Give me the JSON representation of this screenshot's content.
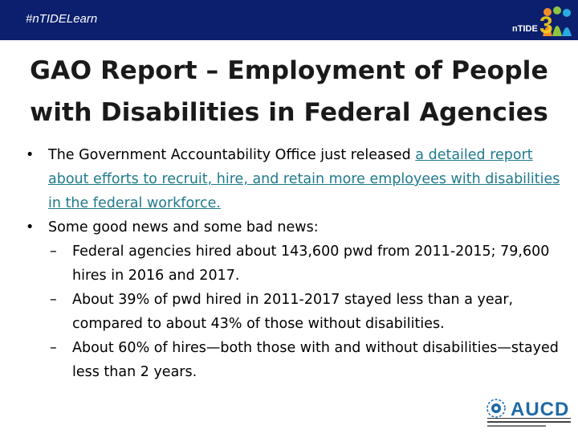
{
  "header": {
    "hashtag": "#nTIDELearn",
    "logo_text": "nTIDE"
  },
  "title": {
    "line1": "GAO Report – Employment of People",
    "line2": "with Disabilities in Federal Agencies"
  },
  "bullets": {
    "first": {
      "text": "The Government Accountability Office just released ",
      "link": "a detailed report about efforts to recruit, hire, and retain more employees with disabilities in the federal workforce."
    },
    "second": {
      "text": "Some good news and some bad news:",
      "sub": [
        "Federal agencies hired about 143,600 pwd from 2011-2015; 79,600 hires in 2016 and 2017.",
        "About 39% of pwd hired in 2011-2017 stayed less than a year, compared to about 43% of those without disabilities.",
        "About 60% of hires—both those with and without disabilities—stayed less than 2 years."
      ]
    }
  },
  "footer": {
    "logo_text": "AUCD"
  },
  "colors": {
    "header_bar": "#0b1f6e",
    "link": "#1f7a8c",
    "aucd_blue": "#1f6aa6"
  }
}
